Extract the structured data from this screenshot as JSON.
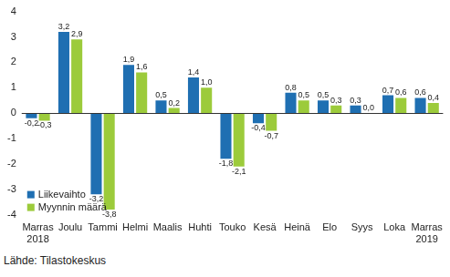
{
  "chart_data": {
    "type": "bar",
    "categories": [
      "Marras 2018",
      "Joulu",
      "Tammi",
      "Helmi",
      "Maalis",
      "Huhti",
      "Touko",
      "Kesä",
      "Heinä",
      "Elo",
      "Syys",
      "Loka",
      "Marras 2019"
    ],
    "series": [
      {
        "name": "Liikevaihto",
        "color": "#1f6fb2",
        "values": [
          -0.2,
          3.2,
          -3.2,
          1.9,
          0.5,
          1.4,
          -1.8,
          -0.4,
          0.8,
          0.5,
          0.3,
          0.7,
          0.6
        ],
        "value_labels": [
          "-0,2",
          "3,2",
          "-3,2",
          "1,9",
          "0,5",
          "1,4",
          "-1,8",
          "-0,4",
          "0,8",
          "0,5",
          "0,3",
          "0,7",
          "0,6"
        ]
      },
      {
        "name": "Myynnin määrä",
        "color": "#9ccb3b",
        "values": [
          -0.3,
          2.9,
          -3.8,
          1.6,
          0.2,
          1.0,
          -2.1,
          -0.7,
          0.5,
          0.3,
          0.0,
          0.6,
          0.4
        ],
        "value_labels": [
          "-0,3",
          "2,9",
          "-3,8",
          "1,6",
          "0,2",
          "1,0",
          "-2,1",
          "-0,7",
          "0,5",
          "0,3",
          "0,0",
          "0,6",
          "0,4"
        ]
      }
    ],
    "ylim": [
      -4,
      4
    ],
    "yticks": [
      -4,
      -3,
      -2,
      -1,
      0,
      1,
      2,
      3,
      4
    ],
    "grid": false,
    "legend": "lower left",
    "data_labels": true,
    "source": "Lähde: Tilastokeskus"
  }
}
